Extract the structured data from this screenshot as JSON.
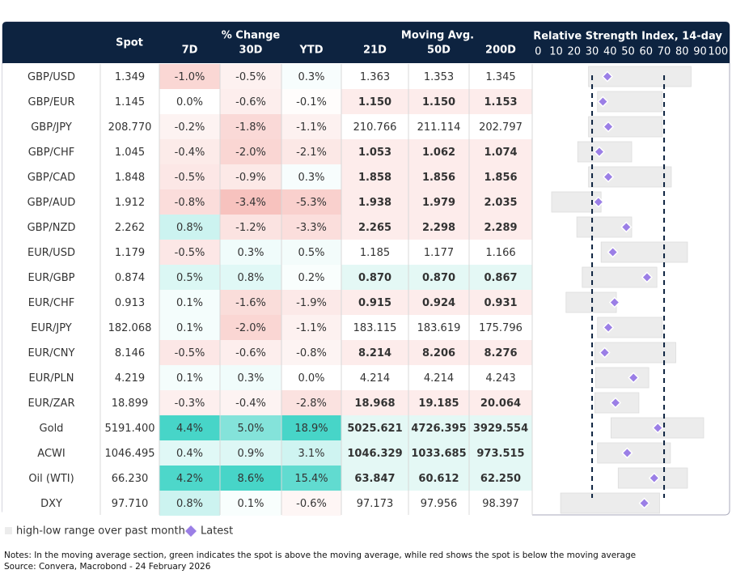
{
  "header": {
    "spot": "Spot",
    "pct_change": "% Change",
    "change_cols": [
      "7D",
      "30D",
      "YTD"
    ],
    "moving_avg": "Moving Avg.",
    "ma_cols": [
      "21D",
      "50D",
      "200D"
    ]
  },
  "table": {
    "rows": [
      [
        "GBP/USD",
        "1.349",
        "-1.0%",
        "-0.5%",
        "0.3%",
        "1.363",
        "1.353",
        "1.345"
      ],
      [
        "GBP/EUR",
        "1.145",
        "0.0%",
        "-0.6%",
        "-0.1%",
        "1.150",
        "1.150",
        "1.153"
      ],
      [
        "GBP/JPY",
        "208.770",
        "-0.2%",
        "-1.8%",
        "-1.1%",
        "210.766",
        "211.114",
        "202.797"
      ],
      [
        "GBP/CHF",
        "1.045",
        "-0.4%",
        "-2.0%",
        "-2.1%",
        "1.053",
        "1.062",
        "1.074"
      ],
      [
        "GBP/CAD",
        "1.848",
        "-0.5%",
        "-0.9%",
        "0.3%",
        "1.858",
        "1.856",
        "1.856"
      ],
      [
        "GBP/AUD",
        "1.912",
        "-0.8%",
        "-3.4%",
        "-5.3%",
        "1.938",
        "1.979",
        "2.035"
      ],
      [
        "GBP/NZD",
        "2.262",
        "0.8%",
        "-1.2%",
        "-3.3%",
        "2.265",
        "2.298",
        "2.289"
      ],
      [
        "EUR/USD",
        "1.179",
        "-0.5%",
        "0.3%",
        "0.5%",
        "1.185",
        "1.177",
        "1.166"
      ],
      [
        "EUR/GBP",
        "0.874",
        "0.5%",
        "0.8%",
        "0.2%",
        "0.870",
        "0.870",
        "0.867"
      ],
      [
        "EUR/CHF",
        "0.913",
        "0.1%",
        "-1.6%",
        "-1.9%",
        "0.915",
        "0.924",
        "0.931"
      ],
      [
        "EUR/JPY",
        "182.068",
        "0.1%",
        "-2.0%",
        "-1.1%",
        "183.115",
        "183.619",
        "175.796"
      ],
      [
        "EUR/CNY",
        "8.146",
        "-0.5%",
        "-0.6%",
        "-0.8%",
        "8.214",
        "8.206",
        "8.276"
      ],
      [
        "EUR/PLN",
        "4.219",
        "0.1%",
        "0.3%",
        "0.0%",
        "4.214",
        "4.214",
        "4.243"
      ],
      [
        "EUR/ZAR",
        "18.899",
        "-0.3%",
        "-0.4%",
        "-2.8%",
        "18.968",
        "19.185",
        "20.064"
      ],
      [
        "Gold",
        "5191.400",
        "4.4%",
        "5.0%",
        "18.9%",
        "5025.621",
        "4726.395",
        "3929.554"
      ],
      [
        "ACWI",
        "1046.495",
        "0.4%",
        "0.9%",
        "3.1%",
        "1046.329",
        "1033.685",
        "973.515"
      ],
      [
        "Oil (WTI)",
        "66.230",
        "4.2%",
        "8.6%",
        "15.4%",
        "63.847",
        "60.612",
        "62.250"
      ],
      [
        "DXY",
        "97.710",
        "0.8%",
        "0.1%",
        "-0.6%",
        "97.173",
        "97.956",
        "98.397"
      ]
    ]
  },
  "chart_data": {
    "type": "range-dot",
    "title": "Relative Strength Index, 14-day",
    "xlim": [
      0,
      100
    ],
    "xticks": [
      0,
      10,
      20,
      30,
      40,
      50,
      60,
      70,
      80,
      90,
      100
    ],
    "reference_lines": [
      30,
      70
    ],
    "range_color": "#ececec",
    "marker_color": "#9b7fe6",
    "series": [
      {
        "name": "high-low range over past month",
        "low": [
          28,
          33,
          28,
          22,
          28,
          7.5,
          21.5,
          35,
          24.5,
          15.5,
          33,
          31.5,
          32,
          31.5,
          40.5,
          33,
          44.5,
          12.5
        ],
        "high": [
          85,
          69,
          69,
          52,
          74,
          35,
          52,
          83,
          66,
          43.5,
          69,
          76.5,
          61.5,
          56,
          92,
          73.5,
          83,
          67.5
        ]
      },
      {
        "name": "Latest",
        "values": [
          38.5,
          36,
          39,
          34,
          39,
          33.5,
          49,
          41.5,
          60.5,
          42.5,
          39,
          37,
          53,
          43,
          66.5,
          49.5,
          64.5,
          59
        ]
      }
    ]
  },
  "notes": [
    "Notes: In the moving average section, green indicates the spot is above the moving average, while red shows the spot is below the moving average",
    "Source: Convera, Macrobond - 24 February 2026"
  ]
}
